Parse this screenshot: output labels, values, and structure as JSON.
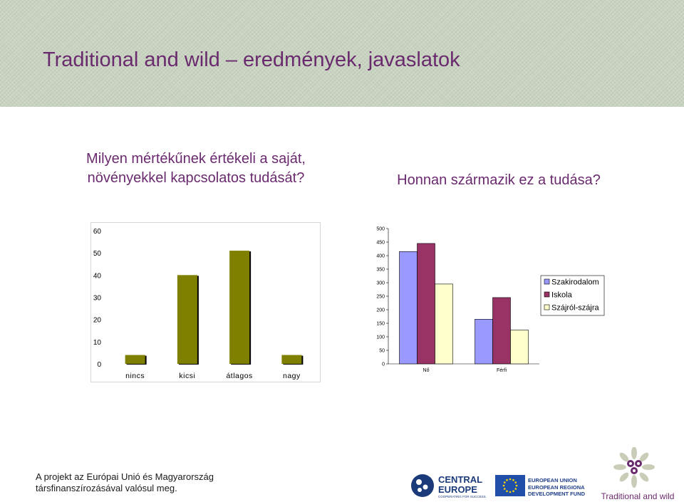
{
  "slide": {
    "title": "Traditional and wild  – eredmények, javaslatok",
    "question_left": "Milyen mértékűnek értékeli a saját, növényekkel kapcsolatos tudását?",
    "question_right": "Honnan származik ez a tudása?",
    "footer_line1": "A projekt az Európai Unió és Magyarország",
    "footer_line2": "társfinanszírozásával valósul meg.",
    "logos": {
      "central_line1": "CENTRAL",
      "central_line2": "EUROPE",
      "central_tagline": "COOPERATING FOR SUCCESS.",
      "eu_line1": "EUROPEAN UNION",
      "eu_line2": "EUROPEAN REGIONAL",
      "eu_line3": "DEVELOPMENT FUND",
      "tw_name": "Traditional and wild"
    }
  },
  "chart_data": [
    {
      "type": "bar",
      "categories": [
        "nincs",
        "kicsi",
        "átlagos",
        "nagy"
      ],
      "values": [
        4,
        40,
        51,
        4
      ],
      "yticks": [
        0,
        10,
        20,
        30,
        40,
        50,
        60
      ],
      "ylim": [
        0,
        60
      ],
      "bar_color": "#808000",
      "grid": false
    },
    {
      "type": "bar",
      "categories": [
        "Nő",
        "Férfi"
      ],
      "yticks": [
        0,
        50,
        100,
        150,
        200,
        250,
        300,
        350,
        400,
        450,
        500
      ],
      "ylim": [
        0,
        500
      ],
      "series": [
        {
          "name": "Szakirodalom",
          "values": [
            415,
            165
          ],
          "color": "#9999ff"
        },
        {
          "name": "Iskola",
          "values": [
            445,
            245
          ],
          "color": "#993366"
        },
        {
          "name": "Szájról-szájra",
          "values": [
            295,
            125
          ],
          "color": "#ffffcc"
        }
      ],
      "legend": "right",
      "grid": false
    }
  ]
}
